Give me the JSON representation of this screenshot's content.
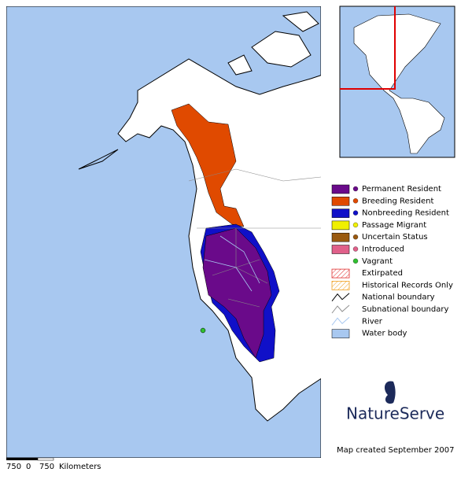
{
  "legend": [
    {
      "label": "Permanent Resident",
      "kind": "box-dot",
      "color": "#6a0a8a"
    },
    {
      "label": "Breeding Resident",
      "kind": "box-dot",
      "color": "#e04a00"
    },
    {
      "label": "Nonbreeding Resident",
      "kind": "box-dot",
      "color": "#1010c8"
    },
    {
      "label": "Passage Migrant",
      "kind": "box-dot",
      "color": "#f0f000"
    },
    {
      "label": "Uncertain Status",
      "kind": "box-dot",
      "color": "#9a5a10"
    },
    {
      "label": "Introduced",
      "kind": "box-dot",
      "color": "#e0608a"
    },
    {
      "label": "Vagrant",
      "kind": "dot",
      "color": "#30c030"
    },
    {
      "label": "Extirpated",
      "kind": "hatch",
      "color": "#e03030"
    },
    {
      "label": "Historical Records Only",
      "kind": "hatch",
      "color": "#f0a020"
    },
    {
      "label": "National boundary",
      "kind": "line",
      "color": "#000000"
    },
    {
      "label": "Subnational boundary",
      "kind": "line",
      "color": "#909090"
    },
    {
      "label": "River",
      "kind": "line",
      "color": "#a8c8f0"
    },
    {
      "label": "Water body",
      "kind": "box",
      "color": "#a8c8f0"
    }
  ],
  "scale_bar": {
    "labels": [
      "750",
      "0",
      "750"
    ],
    "unit": "Kilometers"
  },
  "logo": "NatureServe",
  "credit": "Map created September 2007"
}
